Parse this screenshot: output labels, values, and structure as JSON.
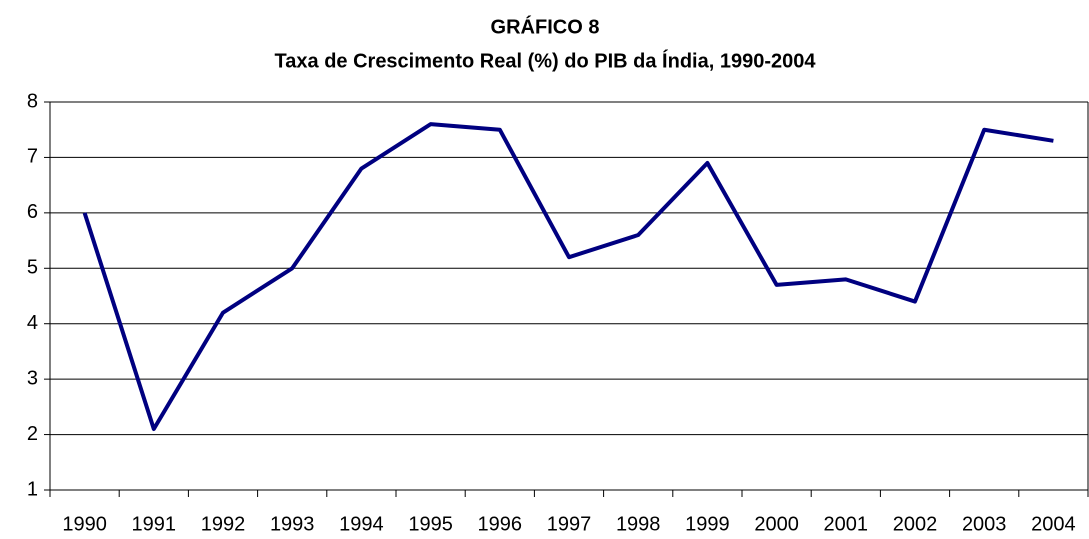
{
  "chart_data": {
    "type": "line",
    "title": "GRÁFICO 8",
    "subtitle": "Taxa de Crescimento Real (%) do PIB da Índia, 1990-2004",
    "categories": [
      "1990",
      "1991",
      "1992",
      "1993",
      "1994",
      "1995",
      "1996",
      "1997",
      "1998",
      "1999",
      "2000",
      "2001",
      "2002",
      "2003",
      "2004"
    ],
    "values": [
      6.0,
      2.1,
      4.2,
      5.0,
      6.8,
      7.6,
      7.5,
      5.2,
      5.6,
      6.9,
      4.7,
      4.8,
      4.4,
      7.5,
      7.3
    ],
    "color": "#000080",
    "ylim": [
      1,
      8
    ],
    "yticks": [
      1,
      2,
      3,
      4,
      5,
      6,
      7,
      8
    ],
    "grid": true
  }
}
